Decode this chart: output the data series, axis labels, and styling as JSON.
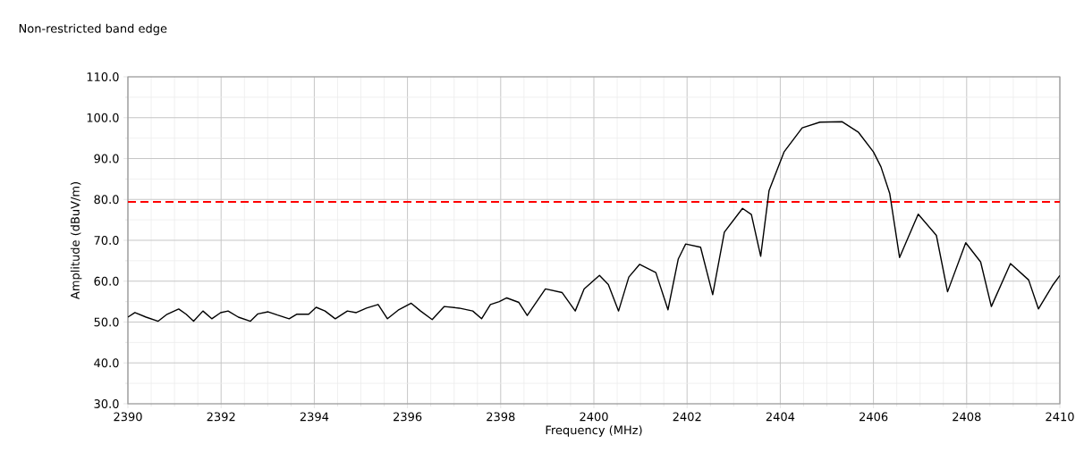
{
  "chart_data": {
    "type": "line",
    "title": "Non-restricted band edge",
    "xlabel": "Frequency (MHz)",
    "ylabel": "Amplitude (dBuV/m)",
    "x": [
      2390.0,
      2390.15,
      2390.39,
      2390.65,
      2390.84,
      2391.09,
      2391.25,
      2391.41,
      2391.61,
      2391.8,
      2391.99,
      2392.15,
      2392.37,
      2392.63,
      2392.79,
      2393.01,
      2393.21,
      2393.46,
      2393.62,
      2393.88,
      2394.04,
      2394.23,
      2394.45,
      2394.71,
      2394.9,
      2395.12,
      2395.37,
      2395.57,
      2395.8,
      2396.08,
      2396.28,
      2396.53,
      2396.79,
      2397.11,
      2397.4,
      2397.59,
      2397.78,
      2397.97,
      2398.13,
      2398.39,
      2398.57,
      2398.96,
      2399.32,
      2399.6,
      2399.79,
      2400.12,
      2400.31,
      2400.53,
      2400.75,
      2400.98,
      2401.33,
      2401.59,
      2401.81,
      2401.97,
      2402.29,
      2402.55,
      2402.8,
      2403.19,
      2403.38,
      2403.58,
      2403.76,
      2404.08,
      2404.47,
      2404.85,
      2405.33,
      2405.68,
      2406.0,
      2406.16,
      2406.35,
      2406.56,
      2406.96,
      2407.35,
      2407.59,
      2407.98,
      2408.3,
      2408.53,
      2408.94,
      2409.33,
      2409.54,
      2409.84,
      2410.0
    ],
    "values": [
      51.2,
      52.3,
      51.2,
      50.2,
      51.9,
      53.2,
      51.9,
      50.2,
      52.7,
      50.8,
      52.3,
      52.7,
      51.2,
      50.2,
      52.0,
      52.5,
      51.7,
      50.8,
      51.9,
      51.9,
      53.6,
      52.7,
      50.8,
      52.7,
      52.3,
      53.4,
      54.3,
      50.8,
      52.9,
      54.6,
      52.7,
      50.6,
      53.8,
      53.4,
      52.7,
      50.8,
      54.3,
      55.0,
      55.9,
      54.8,
      51.6,
      58.1,
      57.2,
      52.7,
      58.1,
      61.4,
      59.2,
      52.7,
      61.0,
      64.1,
      62.1,
      53.0,
      65.4,
      69.1,
      68.3,
      56.7,
      72.0,
      77.8,
      76.3,
      66.1,
      82.2,
      91.6,
      97.5,
      98.9,
      99.0,
      96.4,
      91.6,
      88.0,
      81.4,
      65.8,
      76.4,
      71.2,
      57.4,
      69.4,
      64.7,
      53.8,
      64.3,
      60.3,
      53.2,
      58.9,
      61.4
    ],
    "color": "#000000",
    "xlim": [
      2390,
      2410
    ],
    "xticks": [
      2390,
      2392,
      2394,
      2396,
      2398,
      2400,
      2402,
      2404,
      2406,
      2408,
      2410
    ],
    "ylim": [
      30,
      110
    ],
    "yticks": [
      {
        "value": 30,
        "label": "30.0"
      },
      {
        "value": 40,
        "label": "40.0"
      },
      {
        "value": 50,
        "label": "50.0"
      },
      {
        "value": 60,
        "label": "60.0"
      },
      {
        "value": 70,
        "label": "70.0"
      },
      {
        "value": 80,
        "label": "80.0"
      },
      {
        "value": 90,
        "label": "90.0"
      },
      {
        "value": 100,
        "label": "100.0"
      },
      {
        "value": 110,
        "label": "110.0"
      }
    ],
    "grid": true,
    "ref_lines": [
      {
        "axis": "y",
        "value": 79.4,
        "color": "#ff0000",
        "line_style": "dashed"
      }
    ]
  }
}
